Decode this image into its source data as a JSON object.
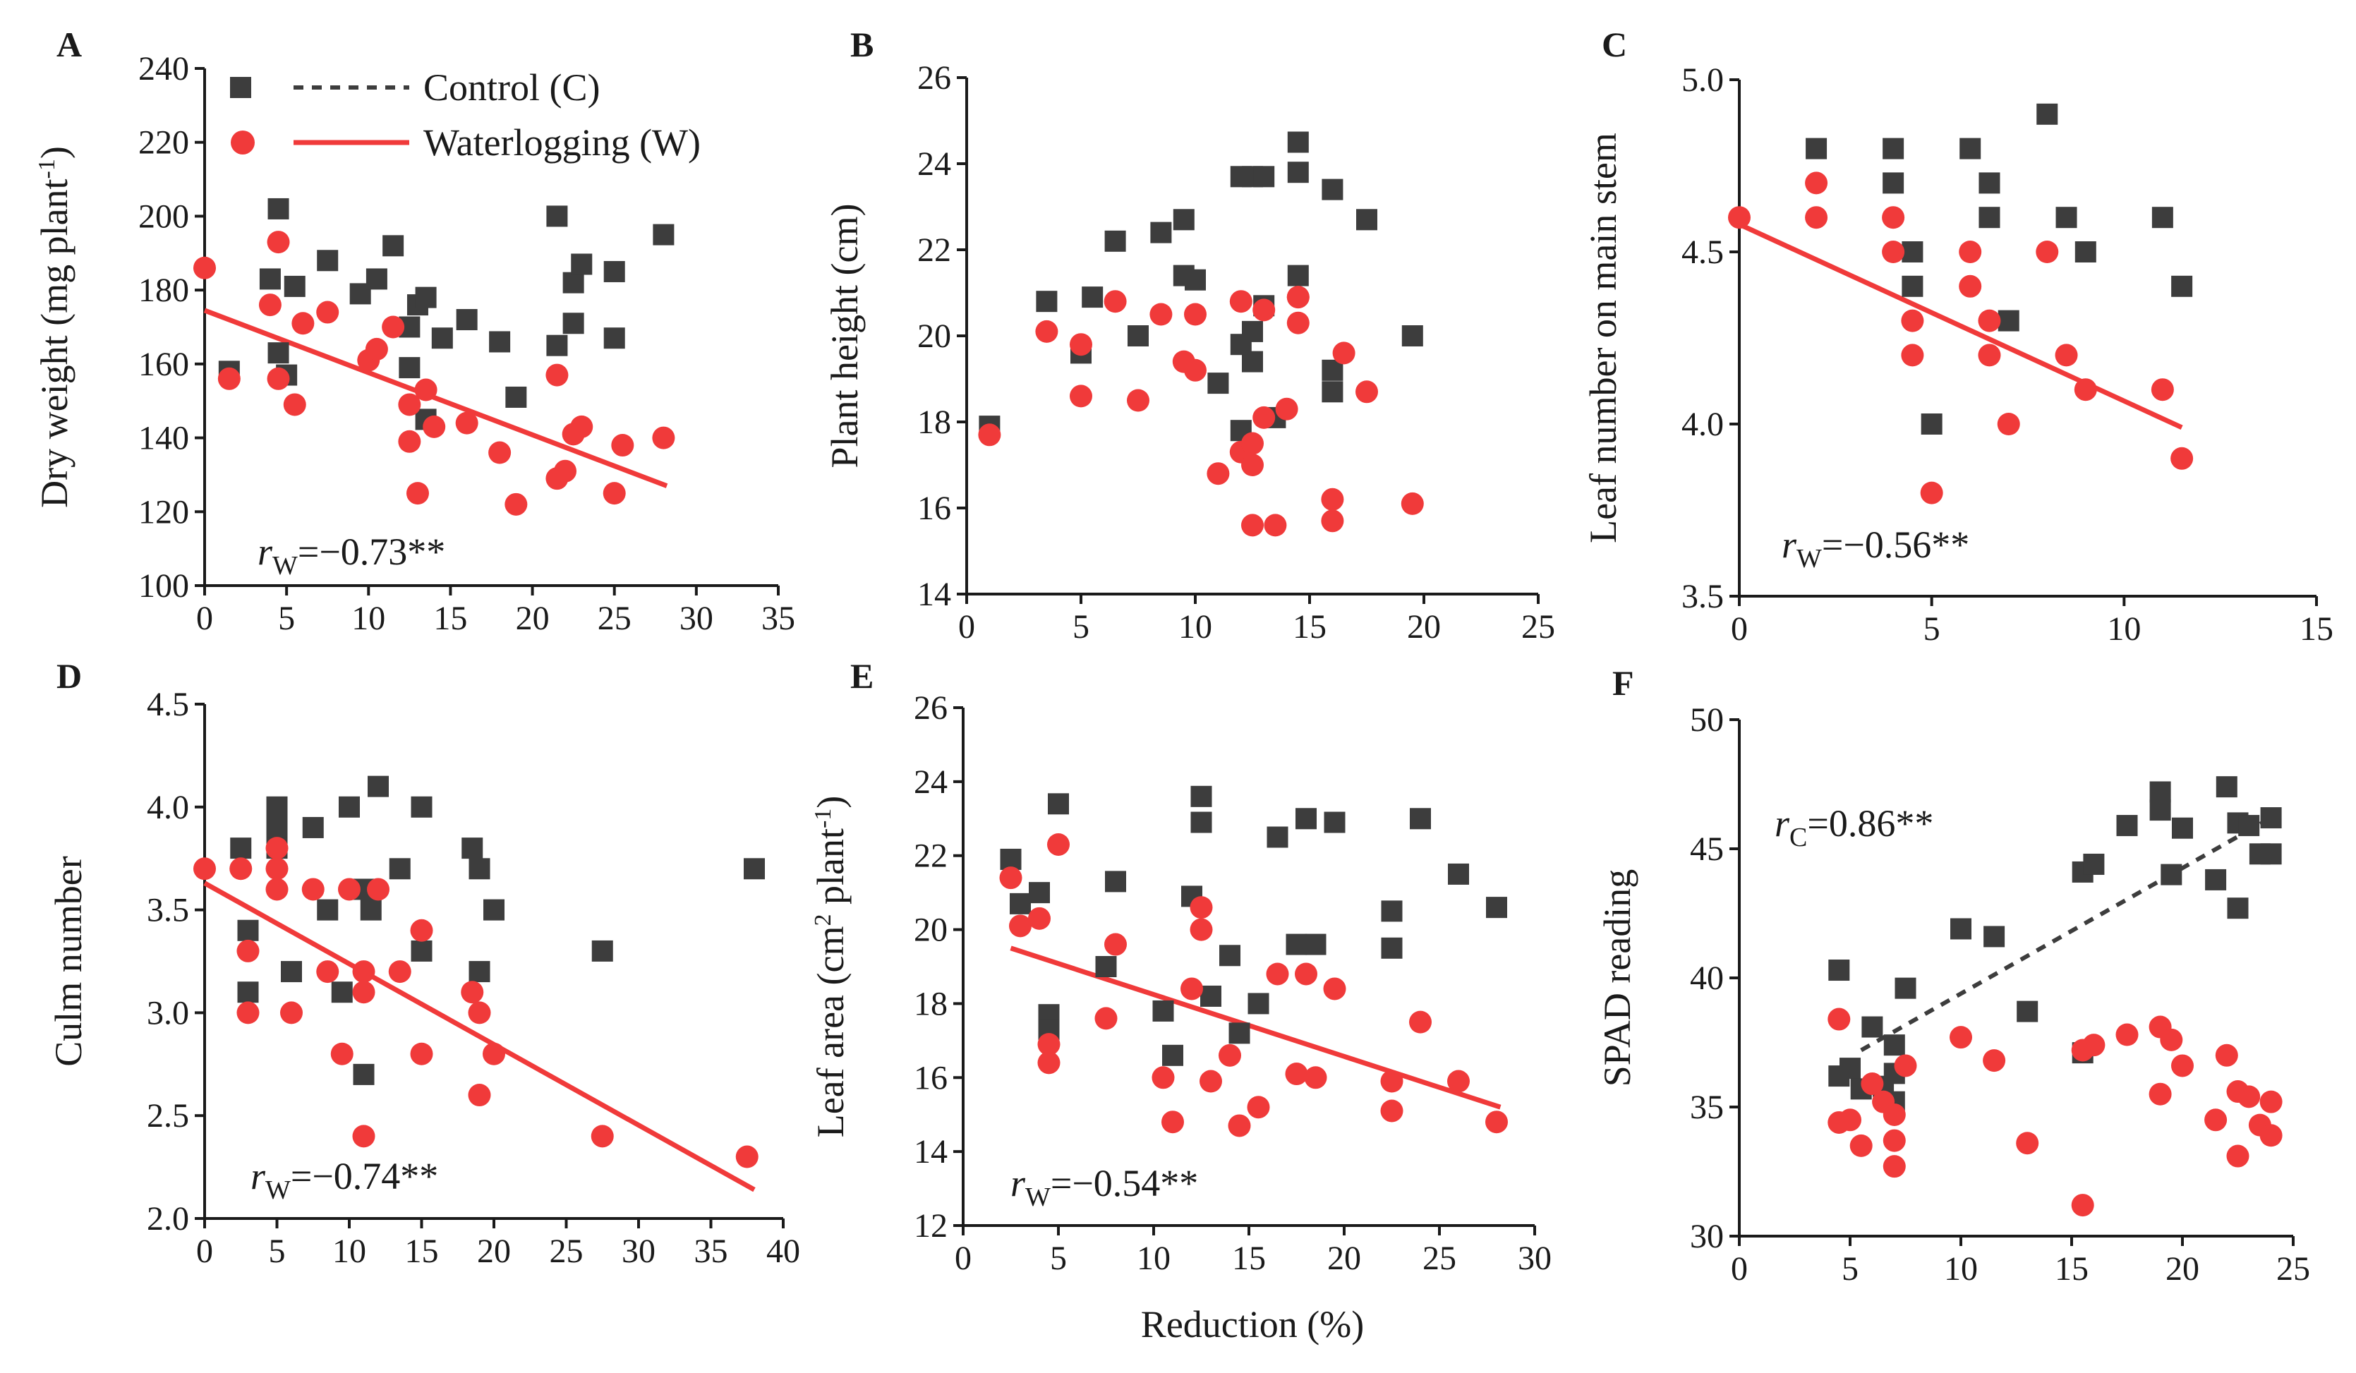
{
  "legend": {
    "control_label": "Control (C)",
    "waterlogging_label": "Waterlogging (W)"
  },
  "shared_xlabel": "Reduction (%)",
  "colors": {
    "control": "#3d3d3d",
    "waterlogging": "#f03a3a"
  },
  "chart_data": [
    {
      "panel": "A",
      "type": "scatter",
      "ylabel": "Dry weight (mg plant-1)",
      "ylabel_main": "Dry weight (mg plant",
      "ylabel_sup": "-1",
      "ylabel_end": ")",
      "xlim": [
        0,
        35
      ],
      "xticks": [
        0,
        5,
        10,
        15,
        20,
        25,
        30,
        35
      ],
      "ylim": [
        100,
        240
      ],
      "yticks": [
        100,
        120,
        140,
        160,
        180,
        200,
        220,
        240
      ],
      "annotation": {
        "sym": "r",
        "sub": "W",
        "text": "=−0.73**"
      },
      "fit": {
        "series": "waterlogging",
        "x": [
          0,
          28.2
        ],
        "y": [
          174.5,
          127
        ]
      },
      "series": [
        {
          "name": "Control (C)",
          "marker": "square",
          "x": [
            1.5,
            4,
            4.5,
            4.5,
            5,
            5.5,
            7.5,
            9.5,
            10.5,
            11.5,
            12.5,
            12.5,
            13,
            13.5,
            13.5,
            14.5,
            16,
            18,
            19,
            21.5,
            21.5,
            22.5,
            22.5,
            23,
            25,
            25,
            28
          ],
          "y": [
            158,
            183,
            163,
            202,
            157,
            181,
            188,
            179,
            183,
            192,
            159,
            170,
            176,
            178,
            145,
            167,
            172,
            166,
            151,
            200,
            165,
            182,
            171,
            187,
            185,
            167,
            195
          ]
        },
        {
          "name": "Waterlogging (W)",
          "marker": "circle",
          "x": [
            0,
            1.5,
            4,
            4.5,
            4.5,
            5.5,
            6,
            7.5,
            10,
            10.5,
            11.5,
            12.5,
            12.5,
            13,
            13.5,
            14,
            16,
            18,
            19,
            21.5,
            21.5,
            22,
            22.5,
            23,
            25,
            25.5,
            28
          ],
          "y": [
            186,
            156,
            176,
            193,
            156,
            149,
            171,
            174,
            161,
            164,
            170,
            149,
            139,
            125,
            153,
            143,
            144,
            136,
            122,
            157,
            129,
            131,
            141,
            143,
            125,
            138,
            140
          ]
        }
      ]
    },
    {
      "panel": "B",
      "type": "scatter",
      "ylabel": "Plant height (cm)",
      "xlim": [
        0,
        25
      ],
      "xticks": [
        0,
        5,
        10,
        15,
        20,
        25
      ],
      "ylim": [
        14,
        26
      ],
      "yticks": [
        14,
        16,
        18,
        20,
        22,
        24,
        26
      ],
      "series": [
        {
          "name": "Control (C)",
          "marker": "square",
          "x": [
            1,
            3.5,
            5,
            5.5,
            6.5,
            7.5,
            8.5,
            9.5,
            9.5,
            10,
            11,
            12,
            12,
            12,
            12.5,
            12.5,
            12.5,
            13,
            13,
            13.5,
            14.5,
            14.5,
            14.5,
            16,
            16,
            16,
            17.5,
            19.5
          ],
          "y": [
            17.9,
            20.8,
            19.6,
            20.9,
            22.2,
            20,
            22.4,
            21.4,
            22.7,
            21.3,
            18.9,
            23.7,
            19.8,
            17.8,
            23.7,
            19.4,
            20.1,
            23.7,
            20.7,
            18.1,
            21.4,
            24.5,
            23.8,
            23.4,
            19.2,
            18.7,
            22.7,
            20
          ]
        },
        {
          "name": "Waterlogging (W)",
          "marker": "circle",
          "x": [
            1,
            3.5,
            5,
            5,
            6.5,
            7.5,
            8.5,
            9.5,
            10,
            10,
            11,
            12,
            12,
            12.5,
            12.5,
            12.5,
            13,
            13,
            13.5,
            14,
            14.5,
            14.5,
            14.5,
            16,
            16,
            16.5,
            17.5,
            19.5
          ],
          "y": [
            17.7,
            20.1,
            19.8,
            18.6,
            20.8,
            18.5,
            20.5,
            19.4,
            20.5,
            19.2,
            16.8,
            17.3,
            20.8,
            17,
            15.6,
            17.5,
            18.1,
            20.6,
            15.6,
            18.3,
            20.9,
            20.3,
            20.9,
            16.2,
            15.7,
            19.6,
            18.7,
            16.1
          ]
        }
      ]
    },
    {
      "panel": "C",
      "type": "scatter",
      "ylabel": "Leaf number on main stem",
      "xlim": [
        0,
        15
      ],
      "xticks": [
        0,
        5,
        10,
        15
      ],
      "ylim": [
        3.5,
        5.0
      ],
      "yticks": [
        3.5,
        4.0,
        4.5,
        5.0
      ],
      "annotation": {
        "sym": "r",
        "sub": "W",
        "text": "=−0.56**"
      },
      "fit": {
        "series": "waterlogging",
        "x": [
          0,
          11.5
        ],
        "y": [
          4.58,
          3.99
        ]
      },
      "series": [
        {
          "name": "Control (C)",
          "marker": "square",
          "x": [
            2,
            4,
            4,
            4.5,
            4.5,
            5,
            6,
            6.5,
            6.5,
            7,
            8,
            8.5,
            9,
            11,
            11.5
          ],
          "y": [
            4.8,
            4.8,
            4.7,
            4.5,
            4.4,
            4.0,
            4.8,
            4.7,
            4.6,
            4.3,
            4.9,
            4.6,
            4.5,
            4.6,
            4.4
          ]
        },
        {
          "name": "Waterlogging (W)",
          "marker": "circle",
          "x": [
            0,
            2,
            2,
            4,
            4,
            4.5,
            4.5,
            5,
            6,
            6,
            6.5,
            6.5,
            7,
            8,
            8.5,
            9,
            11,
            11.5
          ],
          "y": [
            4.6,
            4.7,
            4.6,
            4.6,
            4.5,
            4.3,
            4.2,
            3.8,
            4.5,
            4.4,
            4.3,
            4.2,
            4.0,
            4.5,
            4.2,
            4.1,
            4.1,
            3.9
          ]
        }
      ]
    },
    {
      "panel": "D",
      "type": "scatter",
      "ylabel": "Culm number",
      "xlim": [
        0,
        40
      ],
      "xticks": [
        0,
        5,
        10,
        15,
        20,
        25,
        30,
        35,
        40
      ],
      "ylim": [
        2.0,
        4.5
      ],
      "yticks": [
        2.0,
        2.5,
        3.0,
        3.5,
        4.0,
        4.5
      ],
      "annotation": {
        "sym": "r",
        "sub": "W",
        "text": "=−0.74**"
      },
      "fit": {
        "series": "waterlogging",
        "x": [
          0,
          38
        ],
        "y": [
          3.63,
          2.14
        ]
      },
      "series": [
        {
          "name": "Control (C)",
          "marker": "square",
          "x": [
            2.5,
            3,
            3,
            5,
            5,
            5,
            6,
            7.5,
            8.5,
            9.5,
            10,
            11,
            11,
            11.5,
            12,
            13.5,
            15,
            15,
            18.5,
            19,
            19,
            20,
            27.5,
            38
          ],
          "y": [
            3.8,
            3.4,
            3.1,
            4.0,
            3.9,
            3.8,
            3.2,
            3.9,
            3.5,
            3.1,
            4.0,
            3.6,
            2.7,
            3.5,
            4.1,
            3.7,
            4.0,
            3.3,
            3.8,
            3.7,
            3.2,
            3.5,
            3.3,
            3.7
          ]
        },
        {
          "name": "Waterlogging (W)",
          "marker": "circle",
          "x": [
            0,
            2.5,
            3,
            3,
            5,
            5,
            5,
            6,
            7.5,
            8.5,
            9.5,
            10,
            11,
            11,
            11,
            12,
            13.5,
            15,
            15,
            18.5,
            19,
            19,
            20,
            27.5,
            37.5
          ],
          "y": [
            3.7,
            3.7,
            3.3,
            3.0,
            3.8,
            3.7,
            3.6,
            3.0,
            3.6,
            3.2,
            2.8,
            3.6,
            3.2,
            3.1,
            2.4,
            3.6,
            3.2,
            3.4,
            2.8,
            3.1,
            3.0,
            2.6,
            2.8,
            2.4,
            2.3
          ]
        }
      ]
    },
    {
      "panel": "E",
      "type": "scatter",
      "ylabel": "Leaf area (cm2 plant-1)",
      "ylabel_main": "Leaf area (cm",
      "ylabel_sup": "2",
      "ylabel_mid": " plant",
      "ylabel_sup2": "-1",
      "ylabel_end": ")",
      "xlim": [
        0,
        30
      ],
      "xticks": [
        0,
        5,
        10,
        15,
        20,
        25,
        30
      ],
      "ylim": [
        12,
        26
      ],
      "yticks": [
        12,
        14,
        16,
        18,
        20,
        22,
        24,
        26
      ],
      "annotation": {
        "sym": "r",
        "sub": "W",
        "text": "=−0.54**"
      },
      "fit": {
        "series": "waterlogging",
        "x": [
          2.5,
          28.2
        ],
        "y": [
          19.5,
          15.2
        ]
      },
      "series": [
        {
          "name": "Control (C)",
          "marker": "square",
          "x": [
            2.5,
            3,
            4,
            4.5,
            4.5,
            5,
            7.5,
            8,
            10.5,
            11,
            12,
            12.5,
            12.5,
            13,
            14,
            14.5,
            15.5,
            16.5,
            17.5,
            18,
            18.5,
            19.5,
            22.5,
            22.5,
            24,
            26,
            28
          ],
          "y": [
            21.9,
            20.7,
            21,
            17.7,
            17.3,
            23.4,
            19,
            21.3,
            17.8,
            16.6,
            20.9,
            23.6,
            22.9,
            18.2,
            19.3,
            17.2,
            18,
            22.5,
            19.6,
            23,
            19.6,
            22.9,
            20.5,
            19.5,
            23,
            21.5,
            20.6
          ]
        },
        {
          "name": "Waterlogging (W)",
          "marker": "circle",
          "x": [
            2.5,
            3,
            4,
            4.5,
            4.5,
            5,
            7.5,
            8,
            10.5,
            11,
            12,
            12.5,
            12.5,
            13,
            14,
            14.5,
            15.5,
            16.5,
            17.5,
            18,
            18.5,
            19.5,
            22.5,
            22.5,
            24,
            26,
            28
          ],
          "y": [
            21.4,
            20.1,
            20.3,
            16.9,
            16.4,
            22.3,
            17.6,
            19.6,
            16,
            14.8,
            18.4,
            20.6,
            20,
            15.9,
            16.6,
            14.7,
            15.2,
            18.8,
            16.1,
            18.8,
            16,
            18.4,
            15.9,
            15.1,
            17.5,
            15.9,
            14.8
          ]
        }
      ]
    },
    {
      "panel": "F",
      "type": "scatter",
      "ylabel": "SPAD reading",
      "xlim": [
        0,
        25
      ],
      "xticks": [
        0,
        5,
        10,
        15,
        20,
        25
      ],
      "ylim": [
        30,
        50
      ],
      "yticks": [
        30,
        35,
        40,
        45,
        50
      ],
      "annotation": {
        "sym": "r",
        "sub": "C",
        "text": "=0.86**"
      },
      "fit": {
        "series": "control",
        "x": [
          5.5,
          24
        ],
        "y": [
          37.2,
          46.2
        ]
      },
      "series": [
        {
          "name": "Control (C)",
          "marker": "square",
          "x": [
            4.5,
            4.5,
            5,
            5.5,
            6,
            6.5,
            7,
            7,
            7,
            7.5,
            10,
            11.5,
            13,
            15.5,
            15.5,
            16,
            17.5,
            19,
            19,
            19.5,
            20,
            21.5,
            22,
            22.5,
            22.5,
            23,
            23.5,
            24,
            24
          ],
          "y": [
            40.3,
            36.2,
            36.5,
            35.7,
            38.1,
            35.8,
            37.4,
            36.3,
            35.2,
            39.6,
            41.9,
            41.6,
            38.7,
            37.1,
            44.1,
            44.4,
            45.9,
            47.2,
            46.5,
            44,
            45.8,
            43.8,
            47.4,
            46,
            42.7,
            45.9,
            44.8,
            46.2,
            44.8
          ]
        },
        {
          "name": "Waterlogging (W)",
          "marker": "circle",
          "x": [
            4.5,
            4.5,
            5,
            5.5,
            6,
            6.5,
            7,
            7,
            7,
            7.5,
            10,
            11.5,
            13,
            15.5,
            15.5,
            16,
            17.5,
            19,
            19,
            19.5,
            20,
            21.5,
            22,
            22.5,
            22.5,
            23,
            23.5,
            24,
            24
          ],
          "y": [
            38.4,
            34.4,
            34.5,
            33.5,
            35.9,
            35.2,
            34.7,
            33.7,
            32.7,
            36.6,
            37.7,
            36.8,
            33.6,
            37.2,
            31.2,
            37.4,
            37.8,
            35.5,
            38.1,
            37.6,
            36.6,
            34.5,
            37,
            33.1,
            35.6,
            35.4,
            34.3,
            35.2,
            33.9
          ]
        }
      ]
    }
  ]
}
